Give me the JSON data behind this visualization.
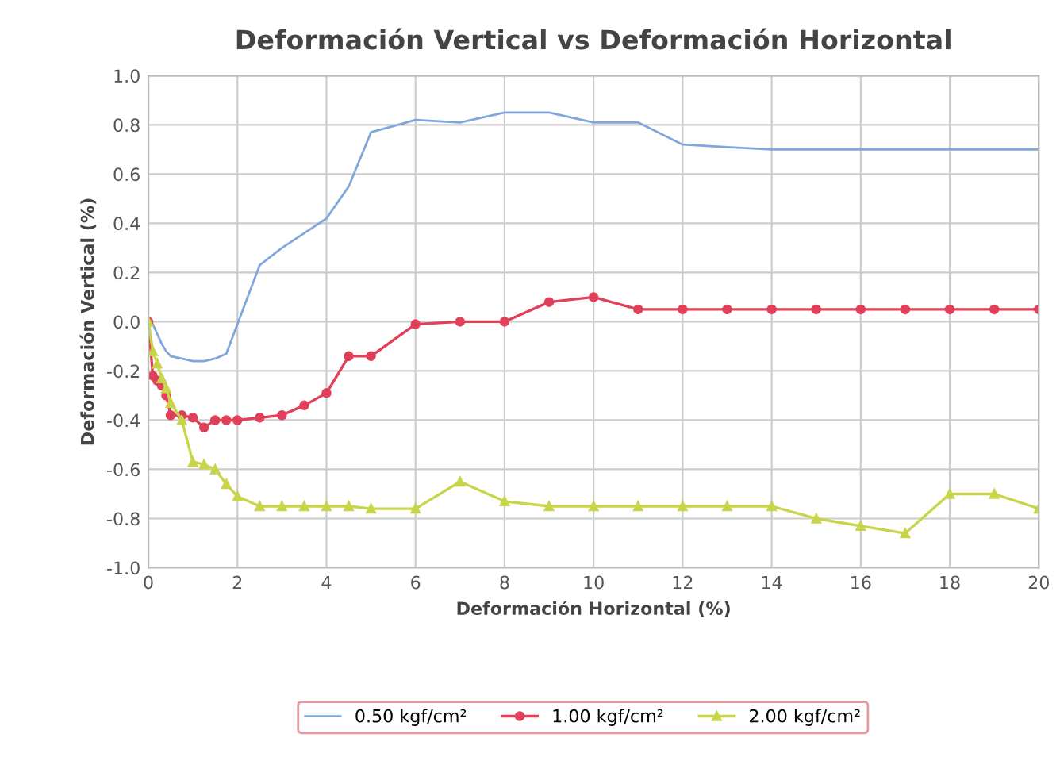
{
  "chart_data": {
    "type": "line",
    "title": "Deformación Vertical vs Deformación Horizontal",
    "xlabel": "Deformación Horizontal (%)",
    "ylabel": "Deformación Vertical (%)",
    "x": [
      0,
      0.1,
      0.2,
      0.3,
      0.4,
      0.5,
      0.75,
      1,
      1.25,
      1.5,
      1.75,
      2,
      2.5,
      3,
      3.5,
      4,
      4.5,
      5,
      6,
      7,
      8,
      9,
      10,
      11,
      12,
      13,
      14,
      15,
      16,
      17,
      18,
      19,
      20
    ],
    "series": [
      {
        "name": "0.50 kgf/cm²",
        "color": "#7fa7dc",
        "marker": "none",
        "values": [
          0,
          -0.01,
          -0.05,
          -0.09,
          -0.12,
          -0.14,
          -0.15,
          -0.16,
          -0.16,
          -0.15,
          -0.13,
          -0.01,
          0.23,
          0.3,
          0.36,
          0.42,
          0.55,
          0.77,
          0.82,
          0.81,
          0.85,
          0.85,
          0.81,
          0.81,
          0.72,
          0.71,
          0.7,
          0.7,
          0.7,
          0.7,
          0.7,
          0.7,
          0.7
        ]
      },
      {
        "name": "1.00 kgf/cm²",
        "color": "#e0405a",
        "marker": "circle",
        "values": [
          0,
          -0.22,
          -0.24,
          -0.26,
          -0.3,
          -0.38,
          -0.38,
          -0.39,
          -0.43,
          -0.4,
          -0.4,
          -0.4,
          -0.39,
          -0.38,
          -0.34,
          -0.29,
          -0.14,
          -0.14,
          -0.01,
          0,
          0,
          0.08,
          0.1,
          0.05,
          0.05,
          0.05,
          0.05,
          0.05,
          0.05,
          0.05,
          0.05,
          0.05,
          0.05
        ]
      },
      {
        "name": "2.00 kgf/cm²",
        "color": "#c8d44a",
        "marker": "triangle",
        "values": [
          0,
          -0.12,
          -0.17,
          -0.23,
          -0.27,
          -0.33,
          -0.4,
          -0.57,
          -0.58,
          -0.6,
          -0.66,
          -0.71,
          -0.75,
          -0.75,
          -0.75,
          -0.75,
          -0.75,
          -0.76,
          -0.76,
          -0.65,
          -0.73,
          -0.75,
          -0.75,
          -0.75,
          -0.75,
          -0.75,
          -0.75,
          -0.8,
          -0.83,
          -0.86,
          -0.7,
          -0.7,
          -0.76
        ]
      }
    ],
    "xlim": [
      0,
      20
    ],
    "xticks": [
      0,
      2,
      4,
      6,
      8,
      10,
      12,
      14,
      16,
      18,
      20
    ],
    "ylim": [
      -1.0,
      1.0
    ],
    "yticks": [
      {
        "value": -1.0,
        "label": "-1.0"
      },
      {
        "value": -0.8,
        "label": "-0.8"
      },
      {
        "value": -0.6,
        "label": "-0.6"
      },
      {
        "value": -0.4,
        "label": "-0.4"
      },
      {
        "value": -0.2,
        "label": "-0.2"
      },
      {
        "value": 0.0,
        "label": "0.0"
      },
      {
        "value": 0.2,
        "label": "0.2"
      },
      {
        "value": 0.4,
        "label": "0.4"
      },
      {
        "value": 0.6,
        "label": "0.6"
      },
      {
        "value": 0.8,
        "label": "0.8"
      },
      {
        "value": 1.0,
        "label": "1.0"
      }
    ],
    "grid": true,
    "legend": "bottom",
    "line_style": "solid"
  }
}
